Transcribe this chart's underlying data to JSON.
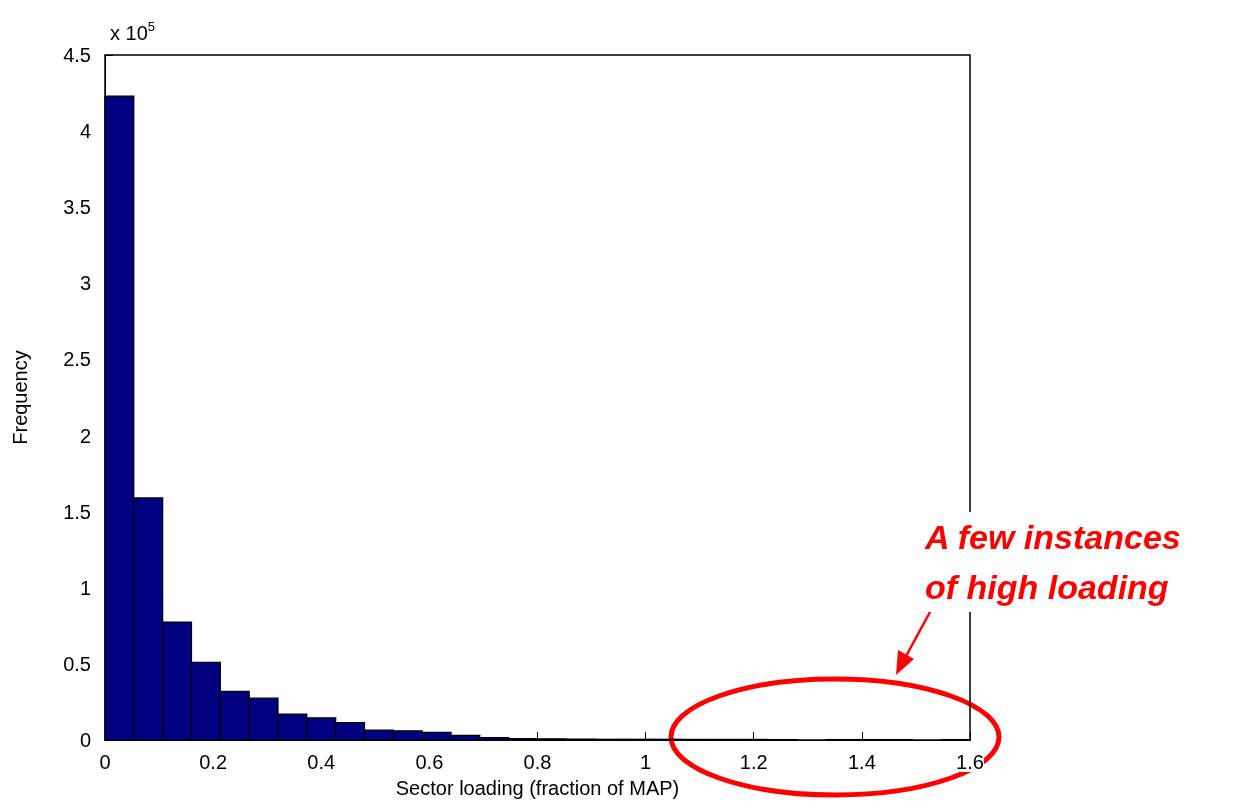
{
  "chart_data": {
    "type": "histogram",
    "xlabel": "Sector loading (fraction of MAP)",
    "ylabel": "Frequency",
    "bins": [
      0,
      0.0533,
      0.1067,
      0.16,
      0.2133,
      0.2667,
      0.32,
      0.3733,
      0.4267,
      0.48,
      0.5333,
      0.5867,
      0.64,
      0.6933,
      0.7467,
      0.8,
      0.8533,
      0.9067,
      0.96,
      1.0133,
      1.0667,
      1.12,
      1.1733,
      1.2267,
      1.28,
      1.3333,
      1.3867,
      1.44,
      1.4933,
      1.5467,
      1.6
    ],
    "values": [
      4.23,
      1.59,
      0.775,
      0.51,
      0.32,
      0.275,
      0.17,
      0.145,
      0.115,
      0.065,
      0.06,
      0.05,
      0.03,
      0.015,
      0.01,
      0.008,
      0.006,
      0.005,
      0.005,
      0.005,
      0.004,
      0.004,
      0.004,
      0.003,
      0,
      0.003,
      0.003,
      0.003,
      0,
      0.003
    ],
    "color": "#000080",
    "xlim": [
      0,
      1.6
    ],
    "xticks": [
      0,
      0.2,
      0.4,
      0.6,
      0.8,
      1,
      1.2,
      1.4,
      1.6
    ],
    "ylim": [
      0,
      4.5
    ],
    "yticks": [
      0,
      0.5,
      1,
      1.5,
      2,
      2.5,
      3,
      3.5,
      4,
      4.5
    ],
    "annotations": [
      "x 10$^{5}$",
      "A few instances\nof high loading"
    ],
    "grid": false
  }
}
